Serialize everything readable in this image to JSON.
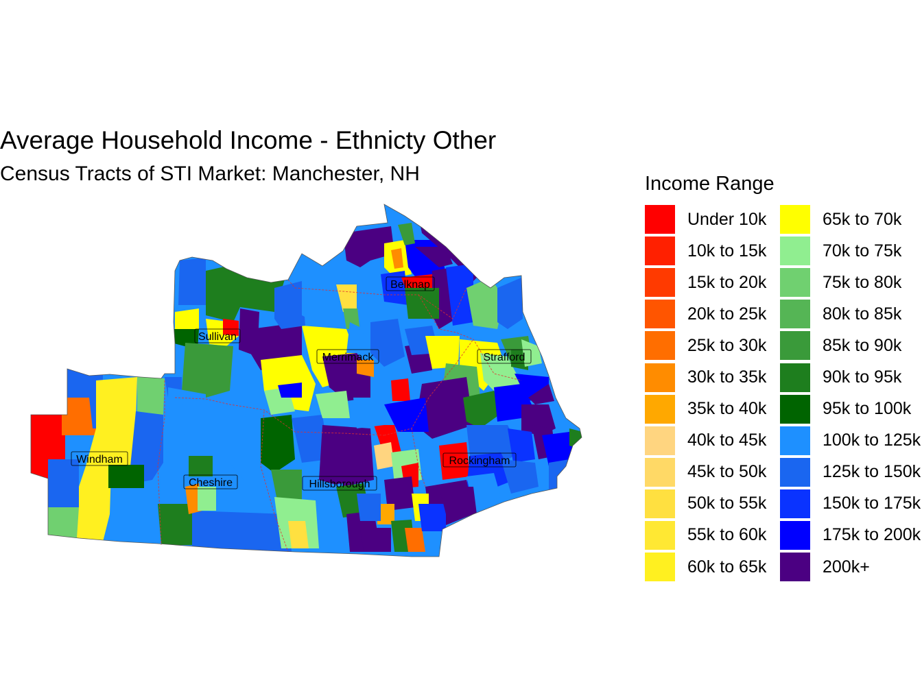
{
  "title": "Average Household Income - Ethnicty Other",
  "subtitle": "Census Tracts of STI Market: Manchester, NH",
  "legend": {
    "title": "Income Range",
    "items": [
      {
        "label": "Under 10k",
        "color": "#FF0000"
      },
      {
        "label": "10k to 15k",
        "color": "#FF2000"
      },
      {
        "label": "15k to 20k",
        "color": "#FF3A00"
      },
      {
        "label": "20k to 25k",
        "color": "#FF5500"
      },
      {
        "label": "25k to 30k",
        "color": "#FF6E00"
      },
      {
        "label": "30k to 35k",
        "color": "#FF8C00"
      },
      {
        "label": "35k to 40k",
        "color": "#FFA800"
      },
      {
        "label": "40k to 45k",
        "color": "#FFD580"
      },
      {
        "label": "45k to 50k",
        "color": "#FFD966"
      },
      {
        "label": "50k to 55k",
        "color": "#FFE040"
      },
      {
        "label": "55k to 60k",
        "color": "#FFE833"
      },
      {
        "label": "60k to 65k",
        "color": "#FFF020"
      },
      {
        "label": "65k to 70k",
        "color": "#FFFF00"
      },
      {
        "label": "70k to 75k",
        "color": "#90EE90"
      },
      {
        "label": "75k to 80k",
        "color": "#70D070"
      },
      {
        "label": "80k to 85k",
        "color": "#55B555"
      },
      {
        "label": "85k to 90k",
        "color": "#3A9A3A"
      },
      {
        "label": "90k to 95k",
        "color": "#1E7E1E"
      },
      {
        "label": "95k to 100k",
        "color": "#006400"
      },
      {
        "label": "100k to 125k",
        "color": "#1E90FF"
      },
      {
        "label": "125k to 150k",
        "color": "#1A66F0"
      },
      {
        "label": "150k to 175k",
        "color": "#0A33FF"
      },
      {
        "label": "175k to 200k",
        "color": "#0000FF"
      },
      {
        "label": "200k+",
        "color": "#4B0082"
      }
    ]
  },
  "map": {
    "counties": [
      "Belknap",
      "Sullivan",
      "Merrimack",
      "Strafford",
      "Windham",
      "Rockingham",
      "Cheshire",
      "Hillsborough"
    ]
  }
}
